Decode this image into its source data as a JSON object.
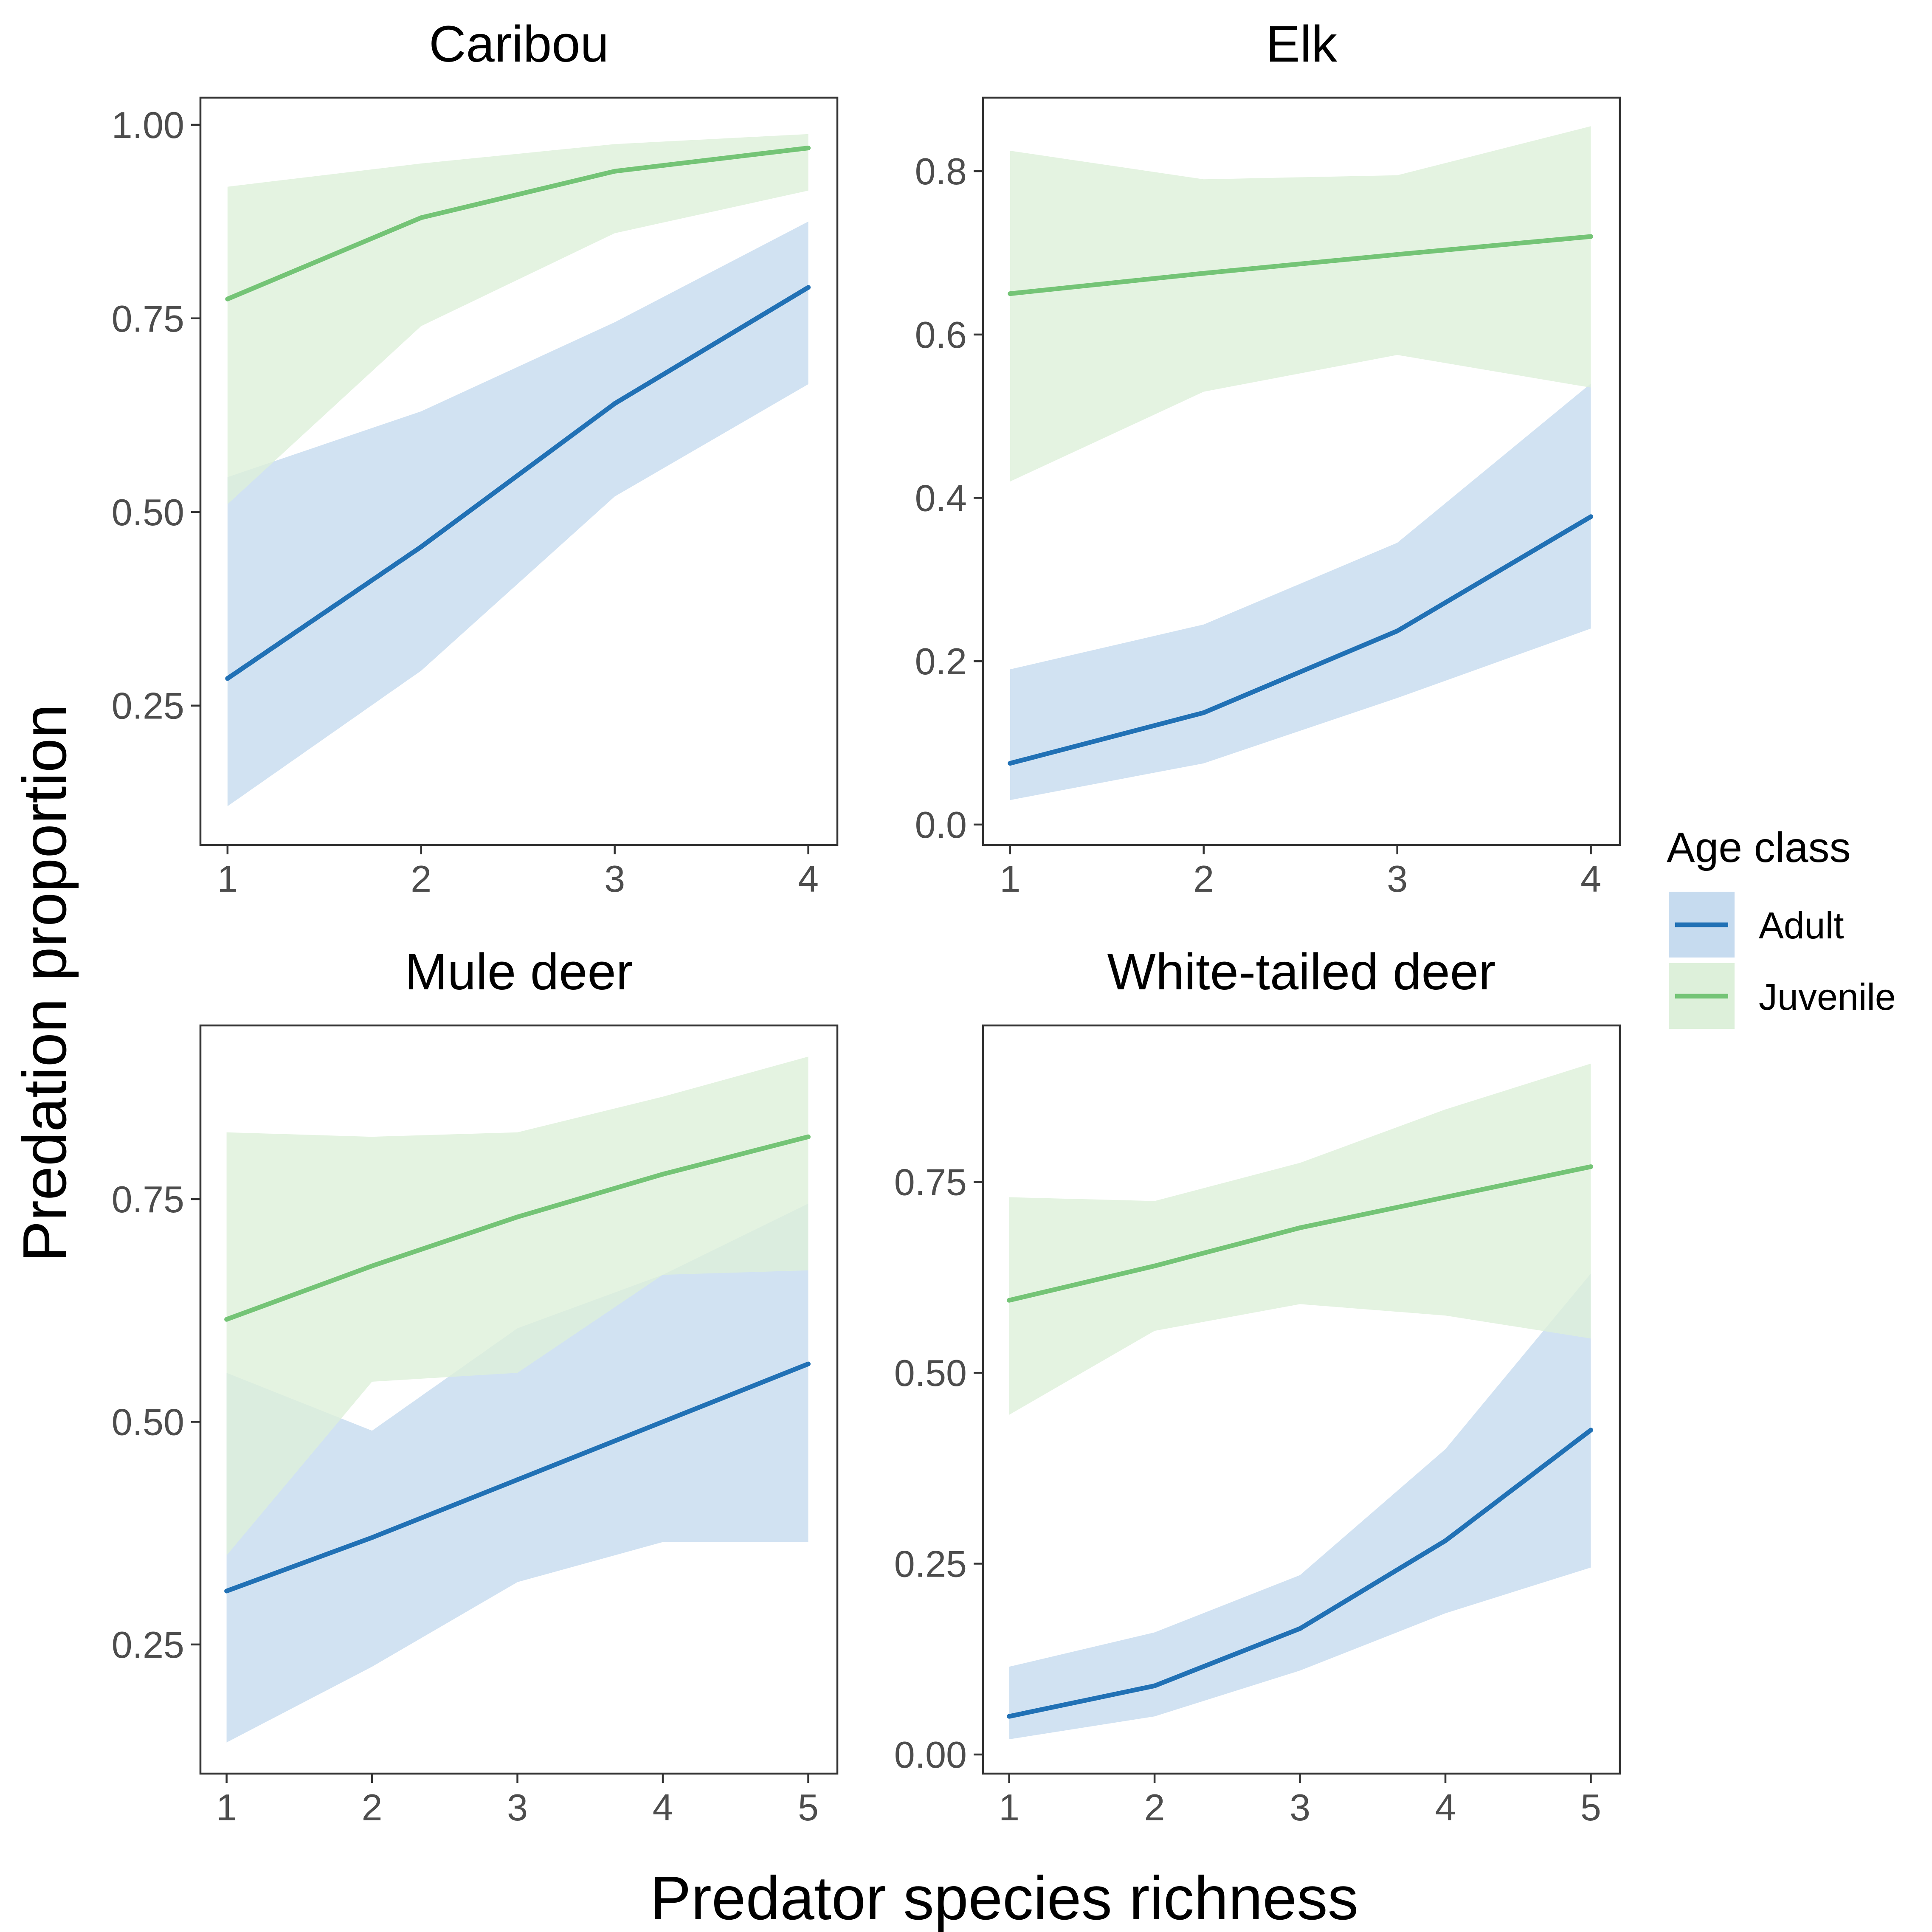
{
  "figure": {
    "xlabel": "Predator species richness",
    "ylabel": "Predation proportion"
  },
  "legend": {
    "title": "Age class",
    "placement": "right",
    "entries": [
      {
        "label": "Adult",
        "color": "#2171b5",
        "fill": "#c6dbef"
      },
      {
        "label": "Juvenile",
        "color": "#74c476",
        "fill": "#ddf0da"
      }
    ]
  },
  "chart_data": [
    {
      "type": "line",
      "title": "Caribou",
      "x": [
        1,
        2,
        3,
        4
      ],
      "xticks": [
        "1",
        "2",
        "3",
        "4"
      ],
      "xlim": [
        0.86,
        4.15
      ],
      "ylim": [
        0.07,
        1.035
      ],
      "yticks": [
        0.25,
        0.5,
        0.75,
        1.0
      ],
      "ytick_labels": [
        "0.25",
        "0.50",
        "0.75",
        "1.00"
      ],
      "series": [
        {
          "name": "Adult",
          "values": [
            0.285,
            0.455,
            0.64,
            0.79
          ],
          "lower": [
            0.12,
            0.295,
            0.52,
            0.665
          ],
          "upper": [
            0.545,
            0.63,
            0.745,
            0.875
          ]
        },
        {
          "name": "Juvenile",
          "values": [
            0.775,
            0.88,
            0.94,
            0.97
          ],
          "lower": [
            0.51,
            0.74,
            0.86,
            0.915
          ],
          "upper": [
            0.92,
            0.95,
            0.975,
            0.988
          ]
        }
      ]
    },
    {
      "type": "line",
      "title": "Elk",
      "x": [
        1,
        2,
        3,
        4
      ],
      "xticks": [
        "1",
        "2",
        "3",
        "4"
      ],
      "xlim": [
        0.86,
        4.15
      ],
      "ylim": [
        -0.025,
        0.89
      ],
      "yticks": [
        0.0,
        0.2,
        0.4,
        0.6,
        0.8
      ],
      "ytick_labels": [
        "0.0",
        "0.2",
        "0.4",
        "0.6",
        "0.8"
      ],
      "series": [
        {
          "name": "Adult",
          "values": [
            0.075,
            0.137,
            0.237,
            0.377
          ],
          "lower": [
            0.03,
            0.075,
            0.155,
            0.24
          ],
          "upper": [
            0.19,
            0.245,
            0.345,
            0.54
          ]
        },
        {
          "name": "Juvenile",
          "values": [
            0.65,
            0.675,
            0.698,
            0.72
          ],
          "lower": [
            0.42,
            0.53,
            0.575,
            0.535
          ],
          "upper": [
            0.825,
            0.79,
            0.795,
            0.855
          ]
        }
      ]
    },
    {
      "type": "line",
      "title": "Mule deer",
      "x": [
        1,
        2,
        3,
        4,
        5
      ],
      "xticks": [
        "1",
        "2",
        "3",
        "4",
        "5"
      ],
      "xlim": [
        0.82,
        5.2
      ],
      "ylim": [
        0.105,
        0.945
      ],
      "yticks": [
        0.25,
        0.5,
        0.75
      ],
      "ytick_labels": [
        "0.25",
        "0.50",
        "0.75"
      ],
      "series": [
        {
          "name": "Adult",
          "values": [
            0.31,
            0.37,
            0.435,
            0.5,
            0.565
          ],
          "lower": [
            0.14,
            0.225,
            0.32,
            0.365,
            0.365
          ],
          "upper": [
            0.555,
            0.49,
            0.605,
            0.665,
            0.745
          ]
        },
        {
          "name": "Juvenile",
          "values": [
            0.615,
            0.675,
            0.73,
            0.778,
            0.82
          ],
          "lower": [
            0.35,
            0.545,
            0.555,
            0.665,
            0.67
          ],
          "upper": [
            0.825,
            0.82,
            0.825,
            0.865,
            0.91
          ]
        }
      ]
    },
    {
      "type": "line",
      "title": "White-tailed deer",
      "x": [
        1,
        2,
        3,
        4,
        5
      ],
      "xticks": [
        "1",
        "2",
        "3",
        "4",
        "5"
      ],
      "xlim": [
        0.82,
        5.2
      ],
      "ylim": [
        -0.025,
        0.955
      ],
      "yticks": [
        0.0,
        0.25,
        0.5,
        0.75
      ],
      "ytick_labels": [
        "0.00",
        "0.25",
        "0.50",
        "0.75"
      ],
      "series": [
        {
          "name": "Adult",
          "values": [
            0.05,
            0.09,
            0.165,
            0.28,
            0.425
          ],
          "lower": [
            0.02,
            0.05,
            0.11,
            0.185,
            0.245
          ],
          "upper": [
            0.115,
            0.16,
            0.235,
            0.4,
            0.63
          ]
        },
        {
          "name": "Juvenile",
          "values": [
            0.595,
            0.64,
            0.69,
            0.73,
            0.77
          ],
          "lower": [
            0.445,
            0.555,
            0.59,
            0.575,
            0.545
          ],
          "upper": [
            0.73,
            0.725,
            0.775,
            0.845,
            0.905
          ]
        }
      ]
    }
  ]
}
